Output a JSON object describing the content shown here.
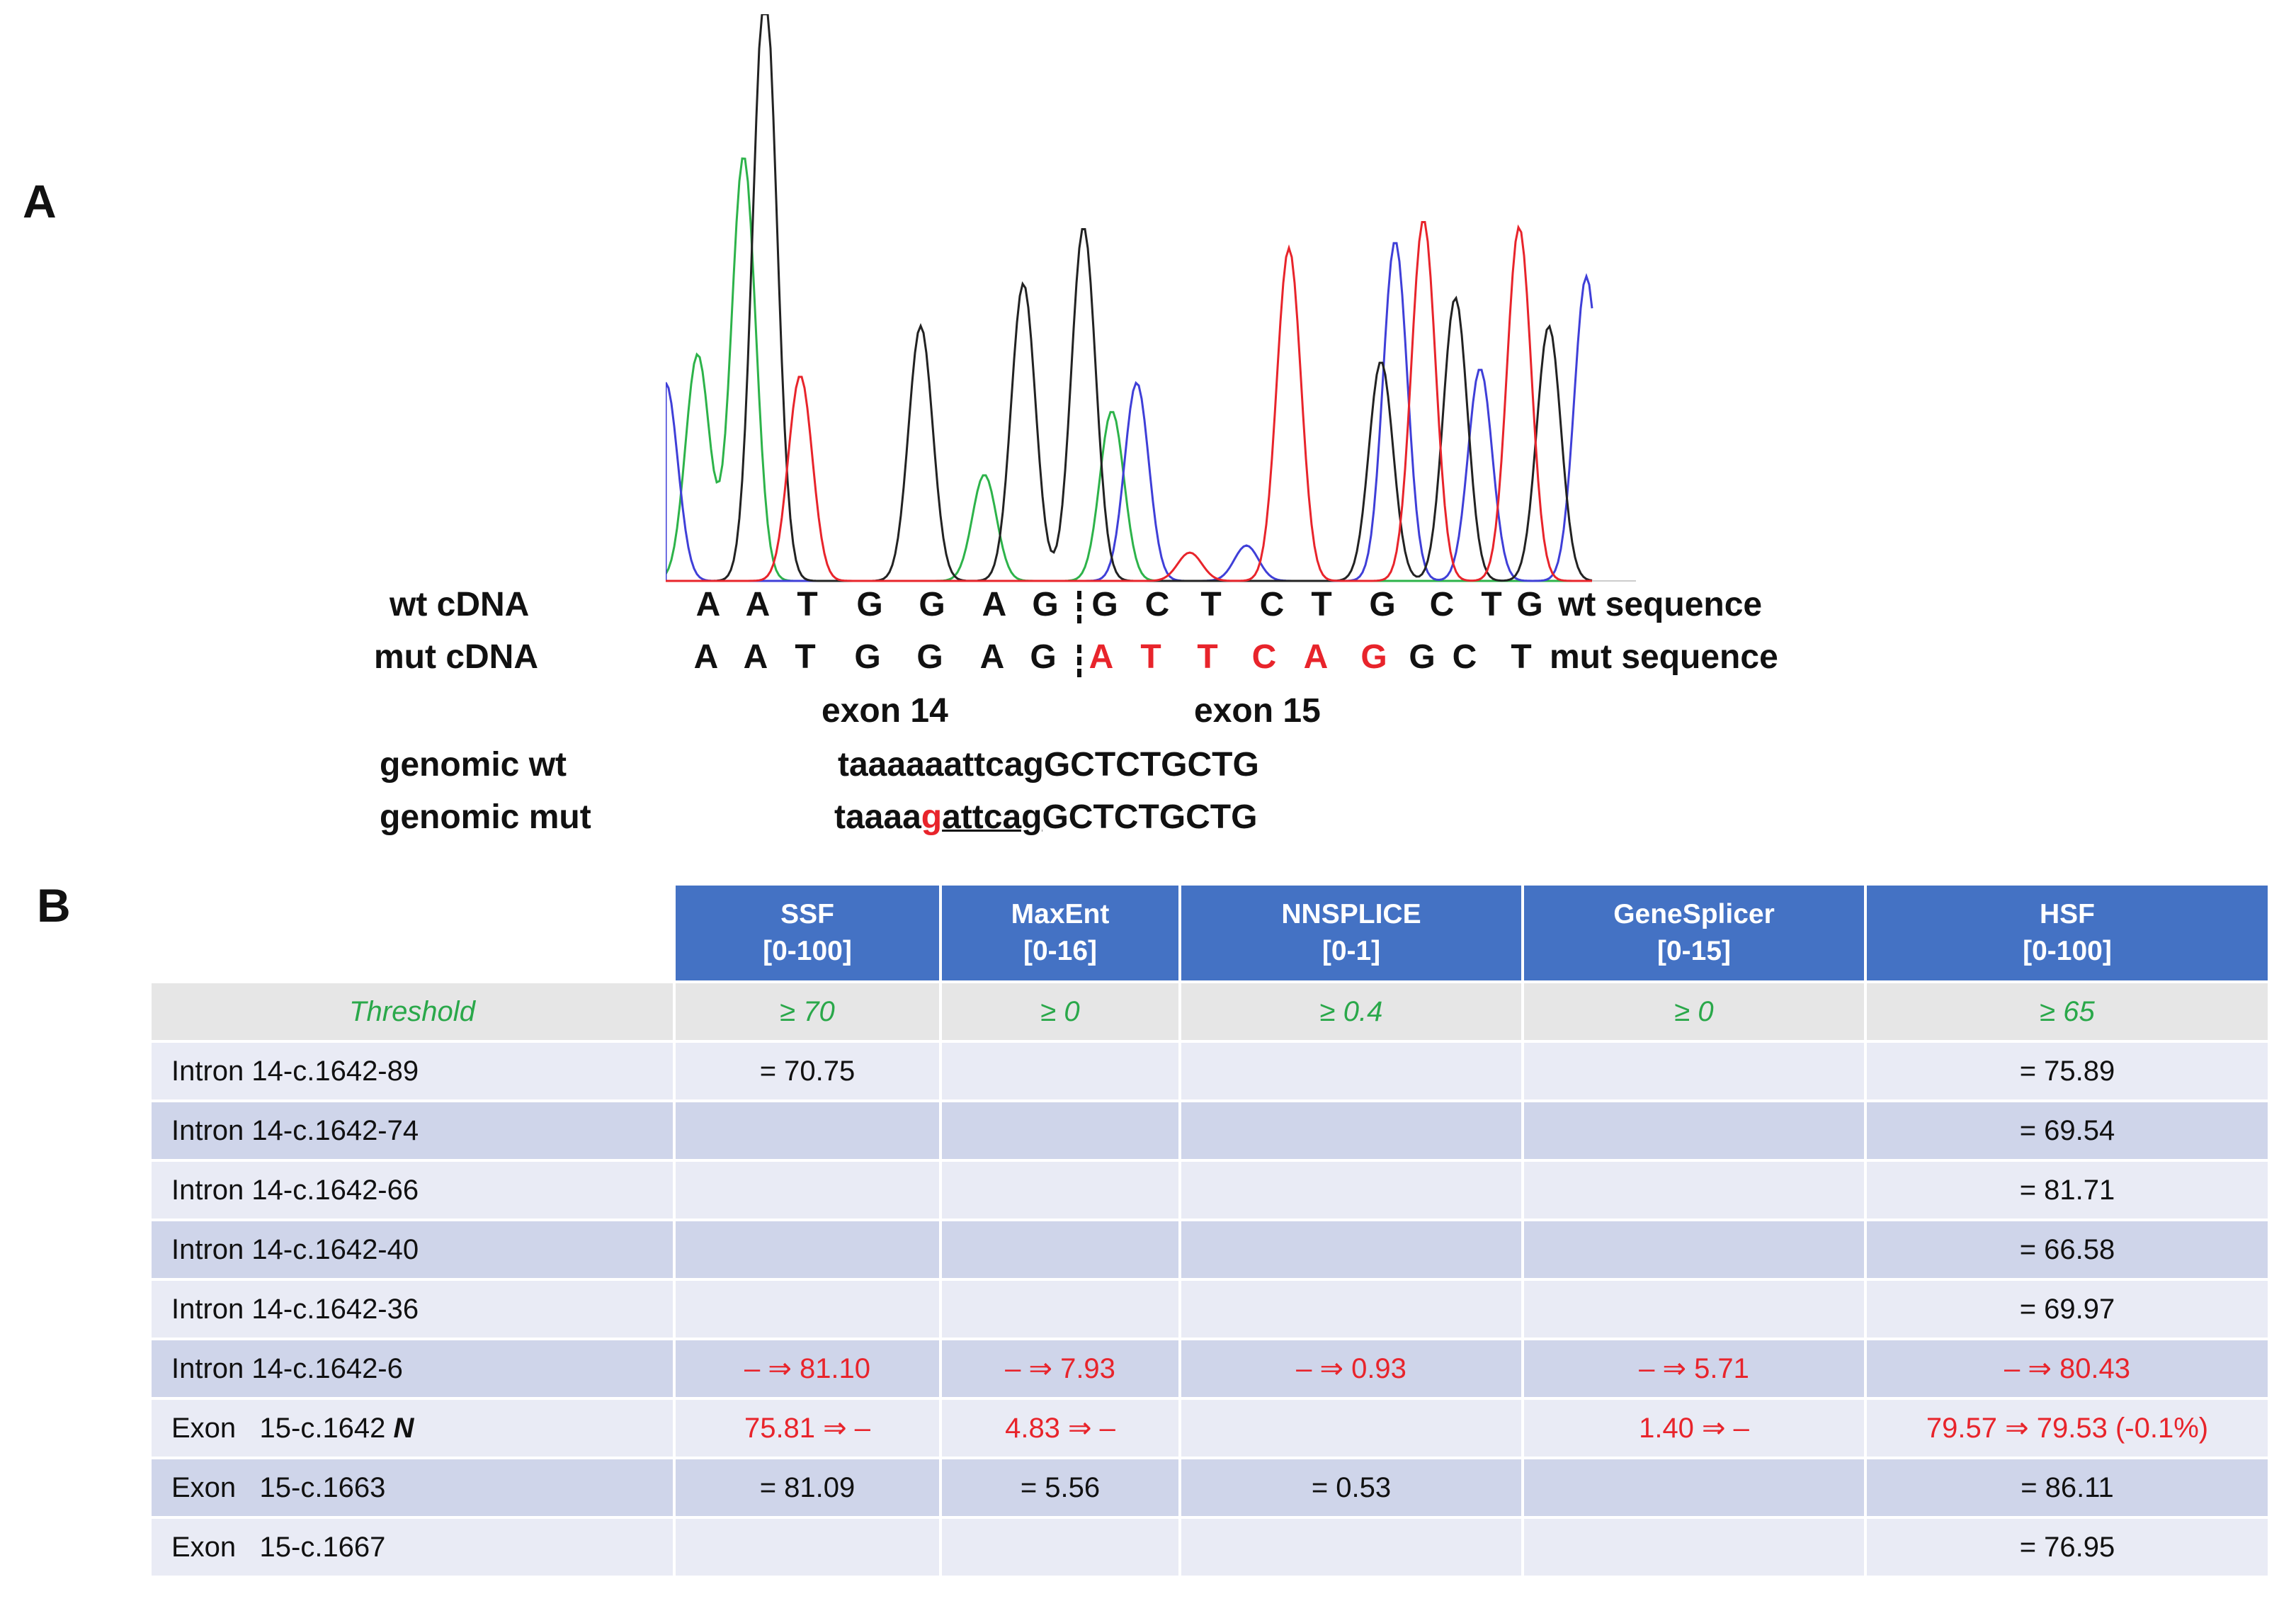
{
  "panel_a_label": "A",
  "panel_b_label": "B",
  "sequence": {
    "wt_label": "wt  cDNA",
    "mut_label": "mut cDNA",
    "wt_bases": [
      "A",
      "A",
      "T",
      "G",
      "G",
      "A",
      "G",
      "G",
      "C",
      "T",
      "C",
      "T",
      "G",
      "C",
      "T",
      "G"
    ],
    "mut_bases": [
      "A",
      "A",
      "T",
      "G",
      "G",
      "A",
      "G",
      "A",
      "T",
      "T",
      "C",
      "A",
      "G",
      "G",
      "C",
      "T"
    ],
    "wt_tail": "wt sequence",
    "mut_tail": "mut sequence",
    "exon_left": "exon 14",
    "exon_right": "exon 15",
    "genomic_wt_label": "genomic wt",
    "genomic_mut_label": "genomic mut",
    "genomic_wt": "taaaaaattcagGCTCTGCTG",
    "genomic_mut_prefix": "taaaa",
    "genomic_mut_variant": "g",
    "genomic_mut_underlined": "attcag",
    "genomic_mut_suffix": "GCTCTGCTG"
  },
  "colors": {
    "A": "#2db34a",
    "C": "#3f3fd8",
    "G": "#222222",
    "T": "#e8242b",
    "header_bg": "#4472c4"
  },
  "table": {
    "headers": [
      {
        "name": "SSF",
        "range": "[0-100]"
      },
      {
        "name": "MaxEnt",
        "range": "[0-16]"
      },
      {
        "name": "NNSPLICE",
        "range": "[0-1]"
      },
      {
        "name": "GeneSplicer",
        "range": "[0-15]"
      },
      {
        "name": "HSF",
        "range": "[0-100]"
      }
    ],
    "threshold": {
      "label": "Threshold",
      "values": [
        "≥ 70",
        "≥ 0",
        "≥ 0.4",
        "≥ 0",
        "≥ 65"
      ]
    },
    "rows": [
      {
        "name": "Intron 14-c.1642-89",
        "values": [
          "= 70.75",
          "",
          "",
          "",
          "= 75.89"
        ]
      },
      {
        "name": "Intron 14-c.1642-74",
        "values": [
          "",
          "",
          "",
          "",
          "= 69.54"
        ]
      },
      {
        "name": "Intron 14-c.1642-66",
        "values": [
          "",
          "",
          "",
          "",
          "= 81.71"
        ]
      },
      {
        "name": "Intron 14-c.1642-40",
        "values": [
          "",
          "",
          "",
          "",
          "= 66.58"
        ]
      },
      {
        "name": "Intron 14-c.1642-36",
        "values": [
          "",
          "",
          "",
          "",
          "= 69.97"
        ]
      },
      {
        "name": "Intron 14-c.1642-6",
        "values": [
          "– ⇒ 81.10",
          "– ⇒ 7.93",
          "– ⇒ 0.93",
          "– ⇒ 5.71",
          "– ⇒ 80.43"
        ],
        "highlight": true
      },
      {
        "name": "Exon   15-c.1642",
        "flag": "N",
        "values": [
          "75.81 ⇒ –",
          "4.83 ⇒ –",
          "",
          "1.40 ⇒ –",
          "79.57 ⇒ 79.53 (-0.1%)"
        ],
        "highlight": true
      },
      {
        "name": "Exon   15-c.1663",
        "values": [
          "= 81.09",
          "= 5.56",
          "= 0.53",
          "",
          "= 86.11"
        ]
      },
      {
        "name": "Exon   15-c.1667",
        "values": [
          "",
          "",
          "",
          "",
          "= 76.95"
        ]
      }
    ]
  }
}
